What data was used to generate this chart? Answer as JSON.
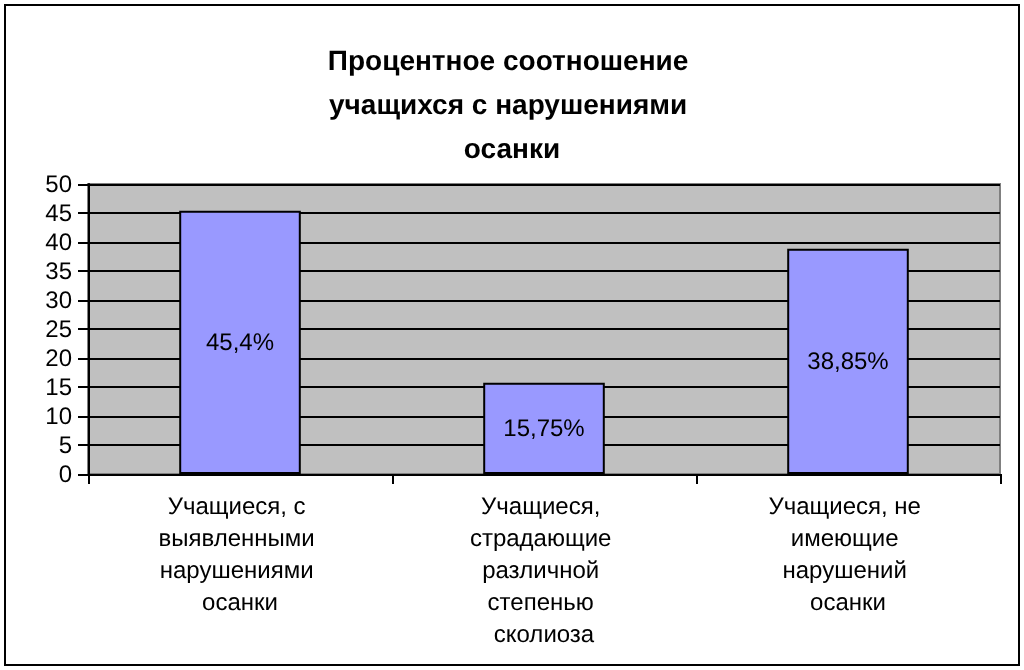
{
  "chart_data": {
    "type": "bar",
    "title": "Процентное соотношение учащихся с нарушениями осанки",
    "categories": [
      "Учащиеся, с выявленными нарушениями осанки",
      "Учащиеся, страдающие различной степенью сколиоза",
      "Учащиеся, не имеющие нарушений осанки"
    ],
    "series": [
      {
        "color": "#9999ff",
        "values": [
          45.4,
          15.75,
          38.85
        ],
        "value_labels": [
          "45,4%",
          "15,75%",
          "38,85%"
        ]
      }
    ],
    "ylim": [
      0,
      50
    ],
    "yticks": [
      0,
      5,
      10,
      15,
      20,
      25,
      30,
      35,
      40,
      45,
      50
    ],
    "grid": "y"
  }
}
